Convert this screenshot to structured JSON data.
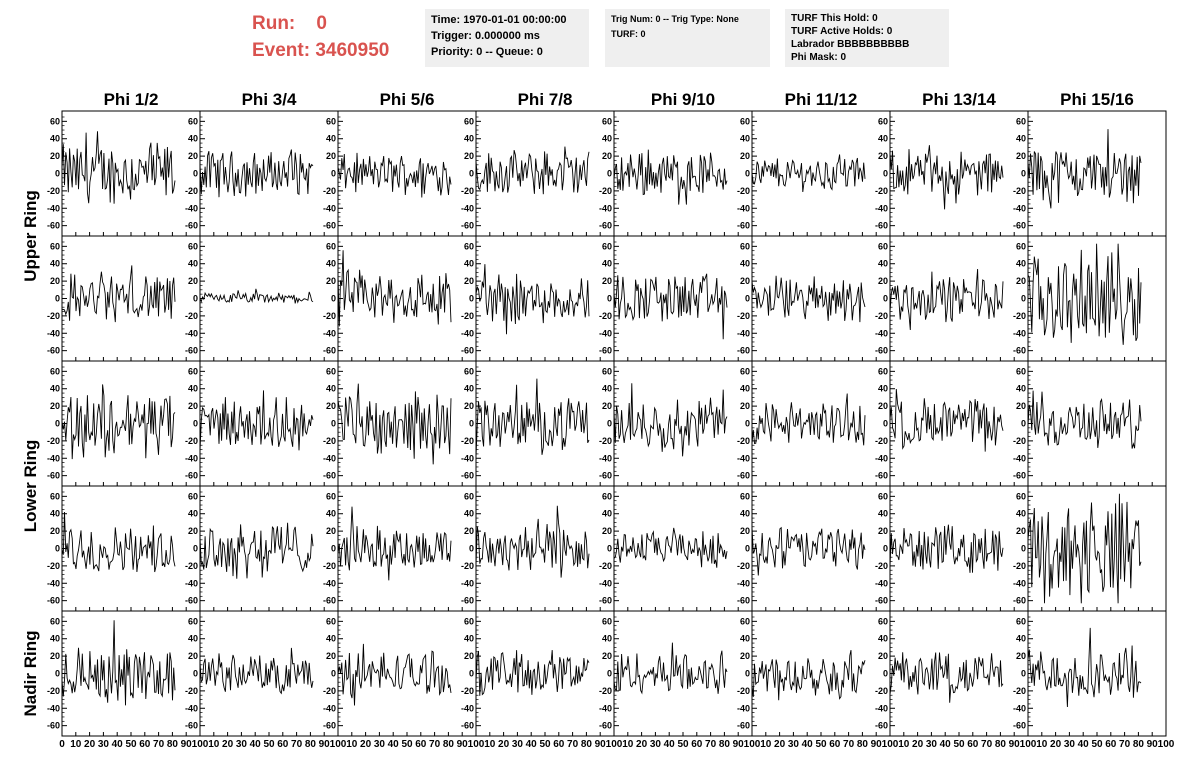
{
  "header": {
    "run_label": "Run:",
    "run_value": "0",
    "event_label": "Event:",
    "event_value": "3460950",
    "time_box": [
      "Time: 1970-01-01 00:00:00",
      "Trigger: 0.000000 ms",
      "Priority: 0 -- Queue: 0"
    ],
    "trig_box": [
      "Trig Num: 0 -- Trig Type: None",
      "",
      "TURF: 0"
    ],
    "turf_box": [
      "TURF This Hold: 0",
      "TURF Active Holds: 0",
      "Labrador BBBBBBBBBB",
      "Phi Mask: 0"
    ]
  },
  "columns": [
    "Phi 1/2",
    "Phi 3/4",
    "Phi 5/6",
    "Phi 7/8",
    "Phi 9/10",
    "Phi 11/12",
    "Phi 13/14",
    "Phi 15/16"
  ],
  "row_labels": [
    {
      "text": "Upper Ring",
      "rows": [
        0,
        1
      ]
    },
    {
      "text": "Lower Ring",
      "rows": [
        2,
        3
      ]
    },
    {
      "text": "Nadir Ring",
      "rows": [
        4
      ]
    }
  ],
  "colors": {
    "header_red": "#d9534f",
    "box_bg": "#efefef",
    "trace": "#000000"
  },
  "chart_data": {
    "type": "line",
    "layout": "grid 5 rows x 8 columns of waveform panels",
    "ylim": [
      -65,
      65
    ],
    "y_ticks": [
      -60,
      -40,
      -20,
      0,
      20,
      40,
      60
    ],
    "xlim": [
      0,
      100
    ],
    "x_ticks": [
      0,
      10,
      20,
      30,
      40,
      50,
      60,
      70,
      80,
      90,
      100
    ],
    "samples_per_trace": 90,
    "amplitudes": [
      [
        22,
        16,
        14,
        16,
        16,
        12,
        16,
        20
      ],
      [
        18,
        4,
        20,
        18,
        18,
        16,
        16,
        32
      ],
      [
        24,
        18,
        22,
        18,
        18,
        16,
        18,
        18
      ],
      [
        16,
        20,
        16,
        20,
        12,
        16,
        16,
        34
      ],
      [
        20,
        14,
        16,
        16,
        16,
        16,
        16,
        18
      ]
    ]
  }
}
